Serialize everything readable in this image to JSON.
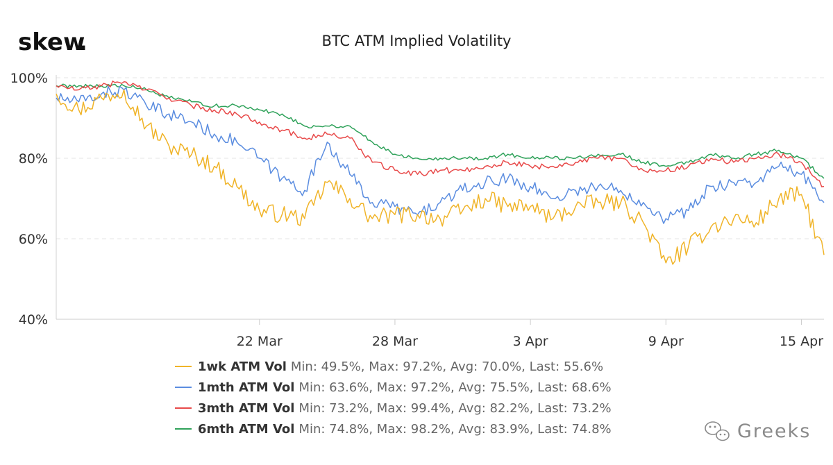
{
  "logo": {
    "text": "skew",
    "dot": ".",
    "dot_color": "#f2b51c"
  },
  "watermark": {
    "text": "Greeks",
    "icon": "wechat-icon"
  },
  "chart_data": {
    "type": "line",
    "title": "BTC ATM Implied Volatility",
    "xlabel": "",
    "ylabel": "",
    "x_start": "2020-03-13",
    "x_end": "2020-04-16",
    "xticks": [
      {
        "date": "2020-03-22",
        "label": "22 Mar"
      },
      {
        "date": "2020-03-28",
        "label": "28 Mar"
      },
      {
        "date": "2020-04-03",
        "label": "3 Apr"
      },
      {
        "date": "2020-04-09",
        "label": "9 Apr"
      },
      {
        "date": "2020-04-15",
        "label": "15 Apr"
      }
    ],
    "ylim": [
      40,
      100
    ],
    "yticks": [
      {
        "value": 40,
        "label": "40%"
      },
      {
        "value": 60,
        "label": "60%"
      },
      {
        "value": 80,
        "label": "80%"
      },
      {
        "value": 100,
        "label": "100%"
      }
    ],
    "grid": "horizontal",
    "legend_position": "bottom",
    "series": [
      {
        "name": "1wk ATM Vol",
        "stats": "Min: 49.5%, Max: 97.2%, Avg: 70.0%, Last: 55.6%",
        "color": "#f0b429",
        "points": [
          [
            "2020-03-13",
            96
          ],
          [
            "2020-03-14",
            92
          ],
          [
            "2020-03-15",
            95
          ],
          [
            "2020-03-16",
            97
          ],
          [
            "2020-03-17",
            88
          ],
          [
            "2020-03-18",
            83
          ],
          [
            "2020-03-19",
            81
          ],
          [
            "2020-03-20",
            78
          ],
          [
            "2020-03-21",
            73
          ],
          [
            "2020-03-22",
            67
          ],
          [
            "2020-03-23",
            66
          ],
          [
            "2020-03-24",
            65
          ],
          [
            "2020-03-25",
            74
          ],
          [
            "2020-03-26",
            70
          ],
          [
            "2020-03-27",
            65
          ],
          [
            "2020-03-28",
            66
          ],
          [
            "2020-03-29",
            66
          ],
          [
            "2020-03-30",
            65
          ],
          [
            "2020-03-31",
            67
          ],
          [
            "2020-04-01",
            70
          ],
          [
            "2020-04-02",
            68
          ],
          [
            "2020-04-03",
            68
          ],
          [
            "2020-04-04",
            65
          ],
          [
            "2020-04-05",
            68
          ],
          [
            "2020-04-06",
            69
          ],
          [
            "2020-04-07",
            69
          ],
          [
            "2020-04-08",
            64
          ],
          [
            "2020-04-09",
            54
          ],
          [
            "2020-04-10",
            58
          ],
          [
            "2020-04-11",
            63
          ],
          [
            "2020-04-12",
            65
          ],
          [
            "2020-04-13",
            64
          ],
          [
            "2020-04-14",
            70
          ],
          [
            "2020-04-15",
            71
          ],
          [
            "2020-04-16",
            56
          ]
        ]
      },
      {
        "name": "1mth ATM Vol",
        "stats": "Min: 63.6%, Max: 97.2%, Avg: 75.5%, Last: 68.6%",
        "color": "#5b8de0",
        "points": [
          [
            "2020-03-13",
            95
          ],
          [
            "2020-03-14",
            94
          ],
          [
            "2020-03-15",
            96
          ],
          [
            "2020-03-16",
            97
          ],
          [
            "2020-03-17",
            93
          ],
          [
            "2020-03-18",
            91
          ],
          [
            "2020-03-19",
            89
          ],
          [
            "2020-03-20",
            86
          ],
          [
            "2020-03-21",
            84
          ],
          [
            "2020-03-22",
            80
          ],
          [
            "2020-03-23",
            75
          ],
          [
            "2020-03-24",
            72
          ],
          [
            "2020-03-25",
            84
          ],
          [
            "2020-03-26",
            76
          ],
          [
            "2020-03-27",
            69
          ],
          [
            "2020-03-28",
            68
          ],
          [
            "2020-03-29",
            66
          ],
          [
            "2020-03-30",
            69
          ],
          [
            "2020-03-31",
            72
          ],
          [
            "2020-04-01",
            74
          ],
          [
            "2020-04-02",
            75
          ],
          [
            "2020-04-03",
            73
          ],
          [
            "2020-04-04",
            70
          ],
          [
            "2020-04-05",
            72
          ],
          [
            "2020-04-06",
            73
          ],
          [
            "2020-04-07",
            72
          ],
          [
            "2020-04-08",
            69
          ],
          [
            "2020-04-09",
            65
          ],
          [
            "2020-04-10",
            67
          ],
          [
            "2020-04-11",
            73
          ],
          [
            "2020-04-12",
            74
          ],
          [
            "2020-04-13",
            74
          ],
          [
            "2020-04-14",
            78
          ],
          [
            "2020-04-15",
            76
          ],
          [
            "2020-04-16",
            69
          ]
        ]
      },
      {
        "name": "3mth ATM Vol",
        "stats": "Min: 73.2%, Max: 99.4%, Avg: 82.2%, Last: 73.2%",
        "color": "#e84a4a",
        "points": [
          [
            "2020-03-13",
            98
          ],
          [
            "2020-03-14",
            97
          ],
          [
            "2020-03-15",
            98
          ],
          [
            "2020-03-16",
            99
          ],
          [
            "2020-03-17",
            97
          ],
          [
            "2020-03-18",
            95
          ],
          [
            "2020-03-19",
            93
          ],
          [
            "2020-03-20",
            92
          ],
          [
            "2020-03-21",
            91
          ],
          [
            "2020-03-22",
            89
          ],
          [
            "2020-03-23",
            87
          ],
          [
            "2020-03-24",
            85
          ],
          [
            "2020-03-25",
            86
          ],
          [
            "2020-03-26",
            85
          ],
          [
            "2020-03-27",
            79
          ],
          [
            "2020-03-28",
            77
          ],
          [
            "2020-03-29",
            76
          ],
          [
            "2020-03-30",
            77
          ],
          [
            "2020-03-31",
            77
          ],
          [
            "2020-04-01",
            78
          ],
          [
            "2020-04-02",
            79
          ],
          [
            "2020-04-03",
            78
          ],
          [
            "2020-04-04",
            78
          ],
          [
            "2020-04-05",
            79
          ],
          [
            "2020-04-06",
            80
          ],
          [
            "2020-04-07",
            80
          ],
          [
            "2020-04-08",
            77
          ],
          [
            "2020-04-09",
            77
          ],
          [
            "2020-04-10",
            78
          ],
          [
            "2020-04-11",
            80
          ],
          [
            "2020-04-12",
            79
          ],
          [
            "2020-04-13",
            80
          ],
          [
            "2020-04-14",
            81
          ],
          [
            "2020-04-15",
            79
          ],
          [
            "2020-04-16",
            73
          ]
        ]
      },
      {
        "name": "6mth ATM Vol",
        "stats": "Min: 74.8%, Max: 98.2%, Avg: 83.9%, Last: 74.8%",
        "color": "#2fa25a",
        "points": [
          [
            "2020-03-13",
            98
          ],
          [
            "2020-03-14",
            98
          ],
          [
            "2020-03-15",
            98
          ],
          [
            "2020-03-16",
            98
          ],
          [
            "2020-03-17",
            97
          ],
          [
            "2020-03-18",
            95
          ],
          [
            "2020-03-19",
            94
          ],
          [
            "2020-03-20",
            93
          ],
          [
            "2020-03-21",
            93
          ],
          [
            "2020-03-22",
            92
          ],
          [
            "2020-03-23",
            91
          ],
          [
            "2020-03-24",
            88
          ],
          [
            "2020-03-25",
            88
          ],
          [
            "2020-03-26",
            88
          ],
          [
            "2020-03-27",
            84
          ],
          [
            "2020-03-28",
            81
          ],
          [
            "2020-03-29",
            80
          ],
          [
            "2020-03-30",
            80
          ],
          [
            "2020-03-31",
            80
          ],
          [
            "2020-04-01",
            80
          ],
          [
            "2020-04-02",
            81
          ],
          [
            "2020-04-03",
            80
          ],
          [
            "2020-04-04",
            80
          ],
          [
            "2020-04-05",
            80
          ],
          [
            "2020-04-06",
            81
          ],
          [
            "2020-04-07",
            81
          ],
          [
            "2020-04-08",
            79
          ],
          [
            "2020-04-09",
            78
          ],
          [
            "2020-04-10",
            79
          ],
          [
            "2020-04-11",
            81
          ],
          [
            "2020-04-12",
            80
          ],
          [
            "2020-04-13",
            81
          ],
          [
            "2020-04-14",
            82
          ],
          [
            "2020-04-15",
            80
          ],
          [
            "2020-04-16",
            75
          ]
        ]
      }
    ]
  }
}
